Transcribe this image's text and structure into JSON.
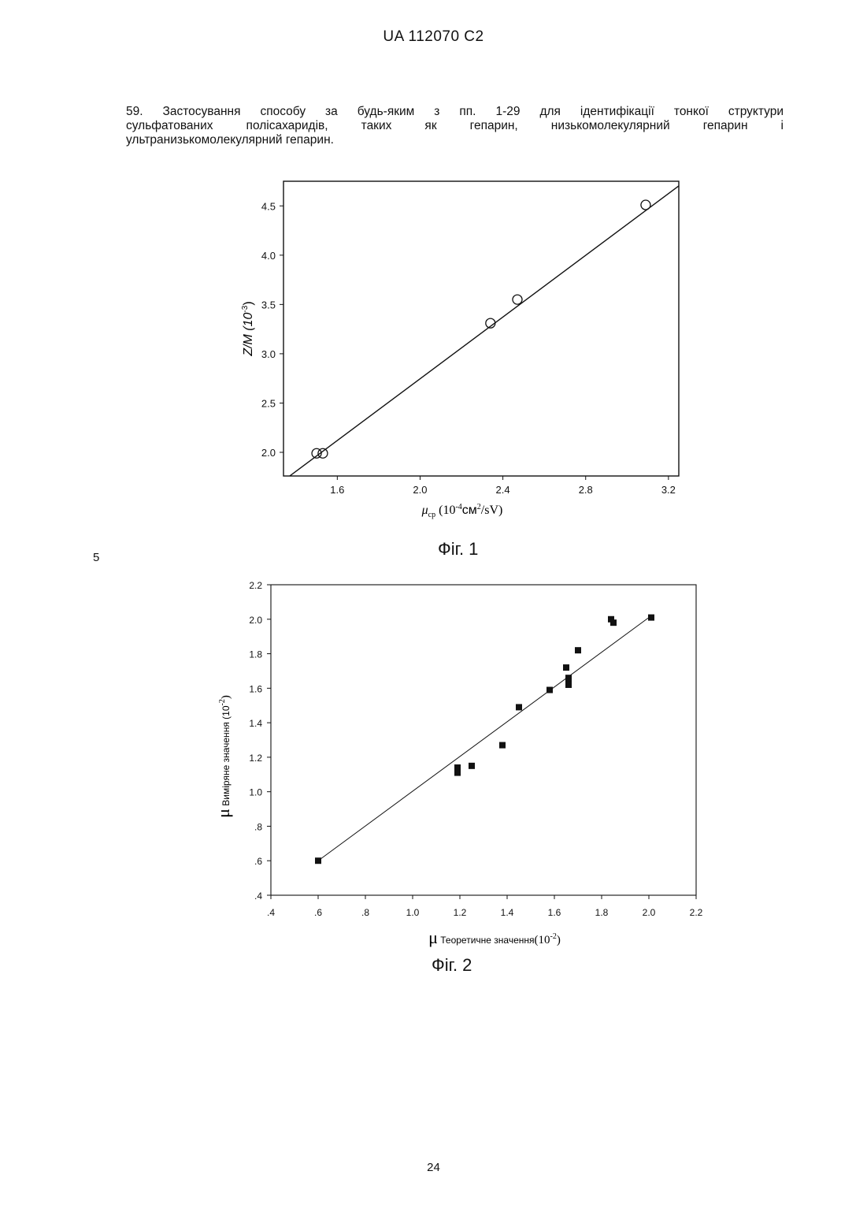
{
  "header": {
    "doc_id": "UA   112070   C2"
  },
  "claim": {
    "line1": "59. Застосування способу за будь-яким з пп. 1-29 для ідентифікації тонкої структури",
    "line2": "сульфатованих полісахаридів, таких як гепарин, низькомолекулярний гепарин і",
    "line3": "ультранизькомолекулярний гепарин."
  },
  "line_number": "5",
  "page_number": "24",
  "figures": {
    "fig1_caption": "Фіг. 1",
    "fig2_caption": "Фіг. 2"
  },
  "chart_data": [
    {
      "type": "scatter",
      "caption": "Фіг. 1",
      "xlabel": {
        "mu": "μ",
        "sub": "ср",
        "text1": " (10",
        "sup1": "-4",
        "text2": "см",
        "sup2": "2",
        "text3": "/sV)"
      },
      "ylabel": {
        "text": "Z/M (10",
        "sup": "-3",
        "close": ")"
      },
      "xlim": [
        1.34,
        3.25
      ],
      "ylim": [
        1.76,
        4.75
      ],
      "xticks": [
        1.6,
        2.0,
        2.4,
        2.8,
        3.2
      ],
      "xtick_labels": [
        "1.6",
        "2.0",
        "2.4",
        "2.8",
        "3.2"
      ],
      "yticks": [
        2.0,
        2.5,
        3.0,
        3.5,
        4.0,
        4.5
      ],
      "ytick_labels": [
        "2.0",
        "2.5",
        "3.0",
        "3.5",
        "4.0",
        "4.5"
      ],
      "points": [
        {
          "x": 1.5,
          "y": 1.99
        },
        {
          "x": 1.53,
          "y": 1.99
        },
        {
          "x": 2.34,
          "y": 3.31
        },
        {
          "x": 2.47,
          "y": 3.55
        },
        {
          "x": 3.09,
          "y": 4.51
        }
      ],
      "fit_line": [
        {
          "x": 1.37,
          "y": 1.76
        },
        {
          "x": 3.28,
          "y": 4.75
        }
      ],
      "marker": "open-circle",
      "grid": false
    },
    {
      "type": "scatter",
      "caption": "Фіг. 2",
      "xlabel": {
        "mu": "μ",
        "text": " Теоретичне значення",
        "unit": "(10",
        "sup": "-2",
        "close": ")"
      },
      "ylabel": {
        "mu": "μ",
        "text": " Виміряне значення (10",
        "sup": "-2",
        "close": ")"
      },
      "xlim": [
        0.4,
        2.2
      ],
      "ylim": [
        0.4,
        2.2
      ],
      "xticks": [
        0.4,
        0.6,
        0.8,
        1.0,
        1.2,
        1.4,
        1.6,
        1.8,
        2.0,
        2.2
      ],
      "xtick_labels": [
        ".4",
        ".6",
        ".8",
        "1.0",
        "1.2",
        "1.4",
        "1.6",
        "1.8",
        "2.0",
        "2.2"
      ],
      "yticks": [
        0.4,
        0.6,
        0.8,
        1.0,
        1.2,
        1.4,
        1.6,
        1.8,
        2.0,
        2.2
      ],
      "ytick_labels": [
        ".4",
        ".6",
        ".8",
        "1.0",
        "1.2",
        "1.4",
        "1.6",
        "1.8",
        "2.0",
        "2.2"
      ],
      "points": [
        {
          "x": 0.6,
          "y": 0.6
        },
        {
          "x": 1.19,
          "y": 1.14
        },
        {
          "x": 1.19,
          "y": 1.11
        },
        {
          "x": 1.25,
          "y": 1.15
        },
        {
          "x": 1.38,
          "y": 1.27
        },
        {
          "x": 1.45,
          "y": 1.49
        },
        {
          "x": 1.58,
          "y": 1.59
        },
        {
          "x": 1.65,
          "y": 1.72
        },
        {
          "x": 1.66,
          "y": 1.66
        },
        {
          "x": 1.66,
          "y": 1.64
        },
        {
          "x": 1.66,
          "y": 1.62
        },
        {
          "x": 1.7,
          "y": 1.82
        },
        {
          "x": 1.84,
          "y": 2.0
        },
        {
          "x": 1.85,
          "y": 1.98
        },
        {
          "x": 2.01,
          "y": 2.01
        }
      ],
      "fit_line": [
        {
          "x": 0.6,
          "y": 0.6
        },
        {
          "x": 2.01,
          "y": 2.02
        }
      ],
      "marker": "filled-square",
      "grid": false
    }
  ]
}
